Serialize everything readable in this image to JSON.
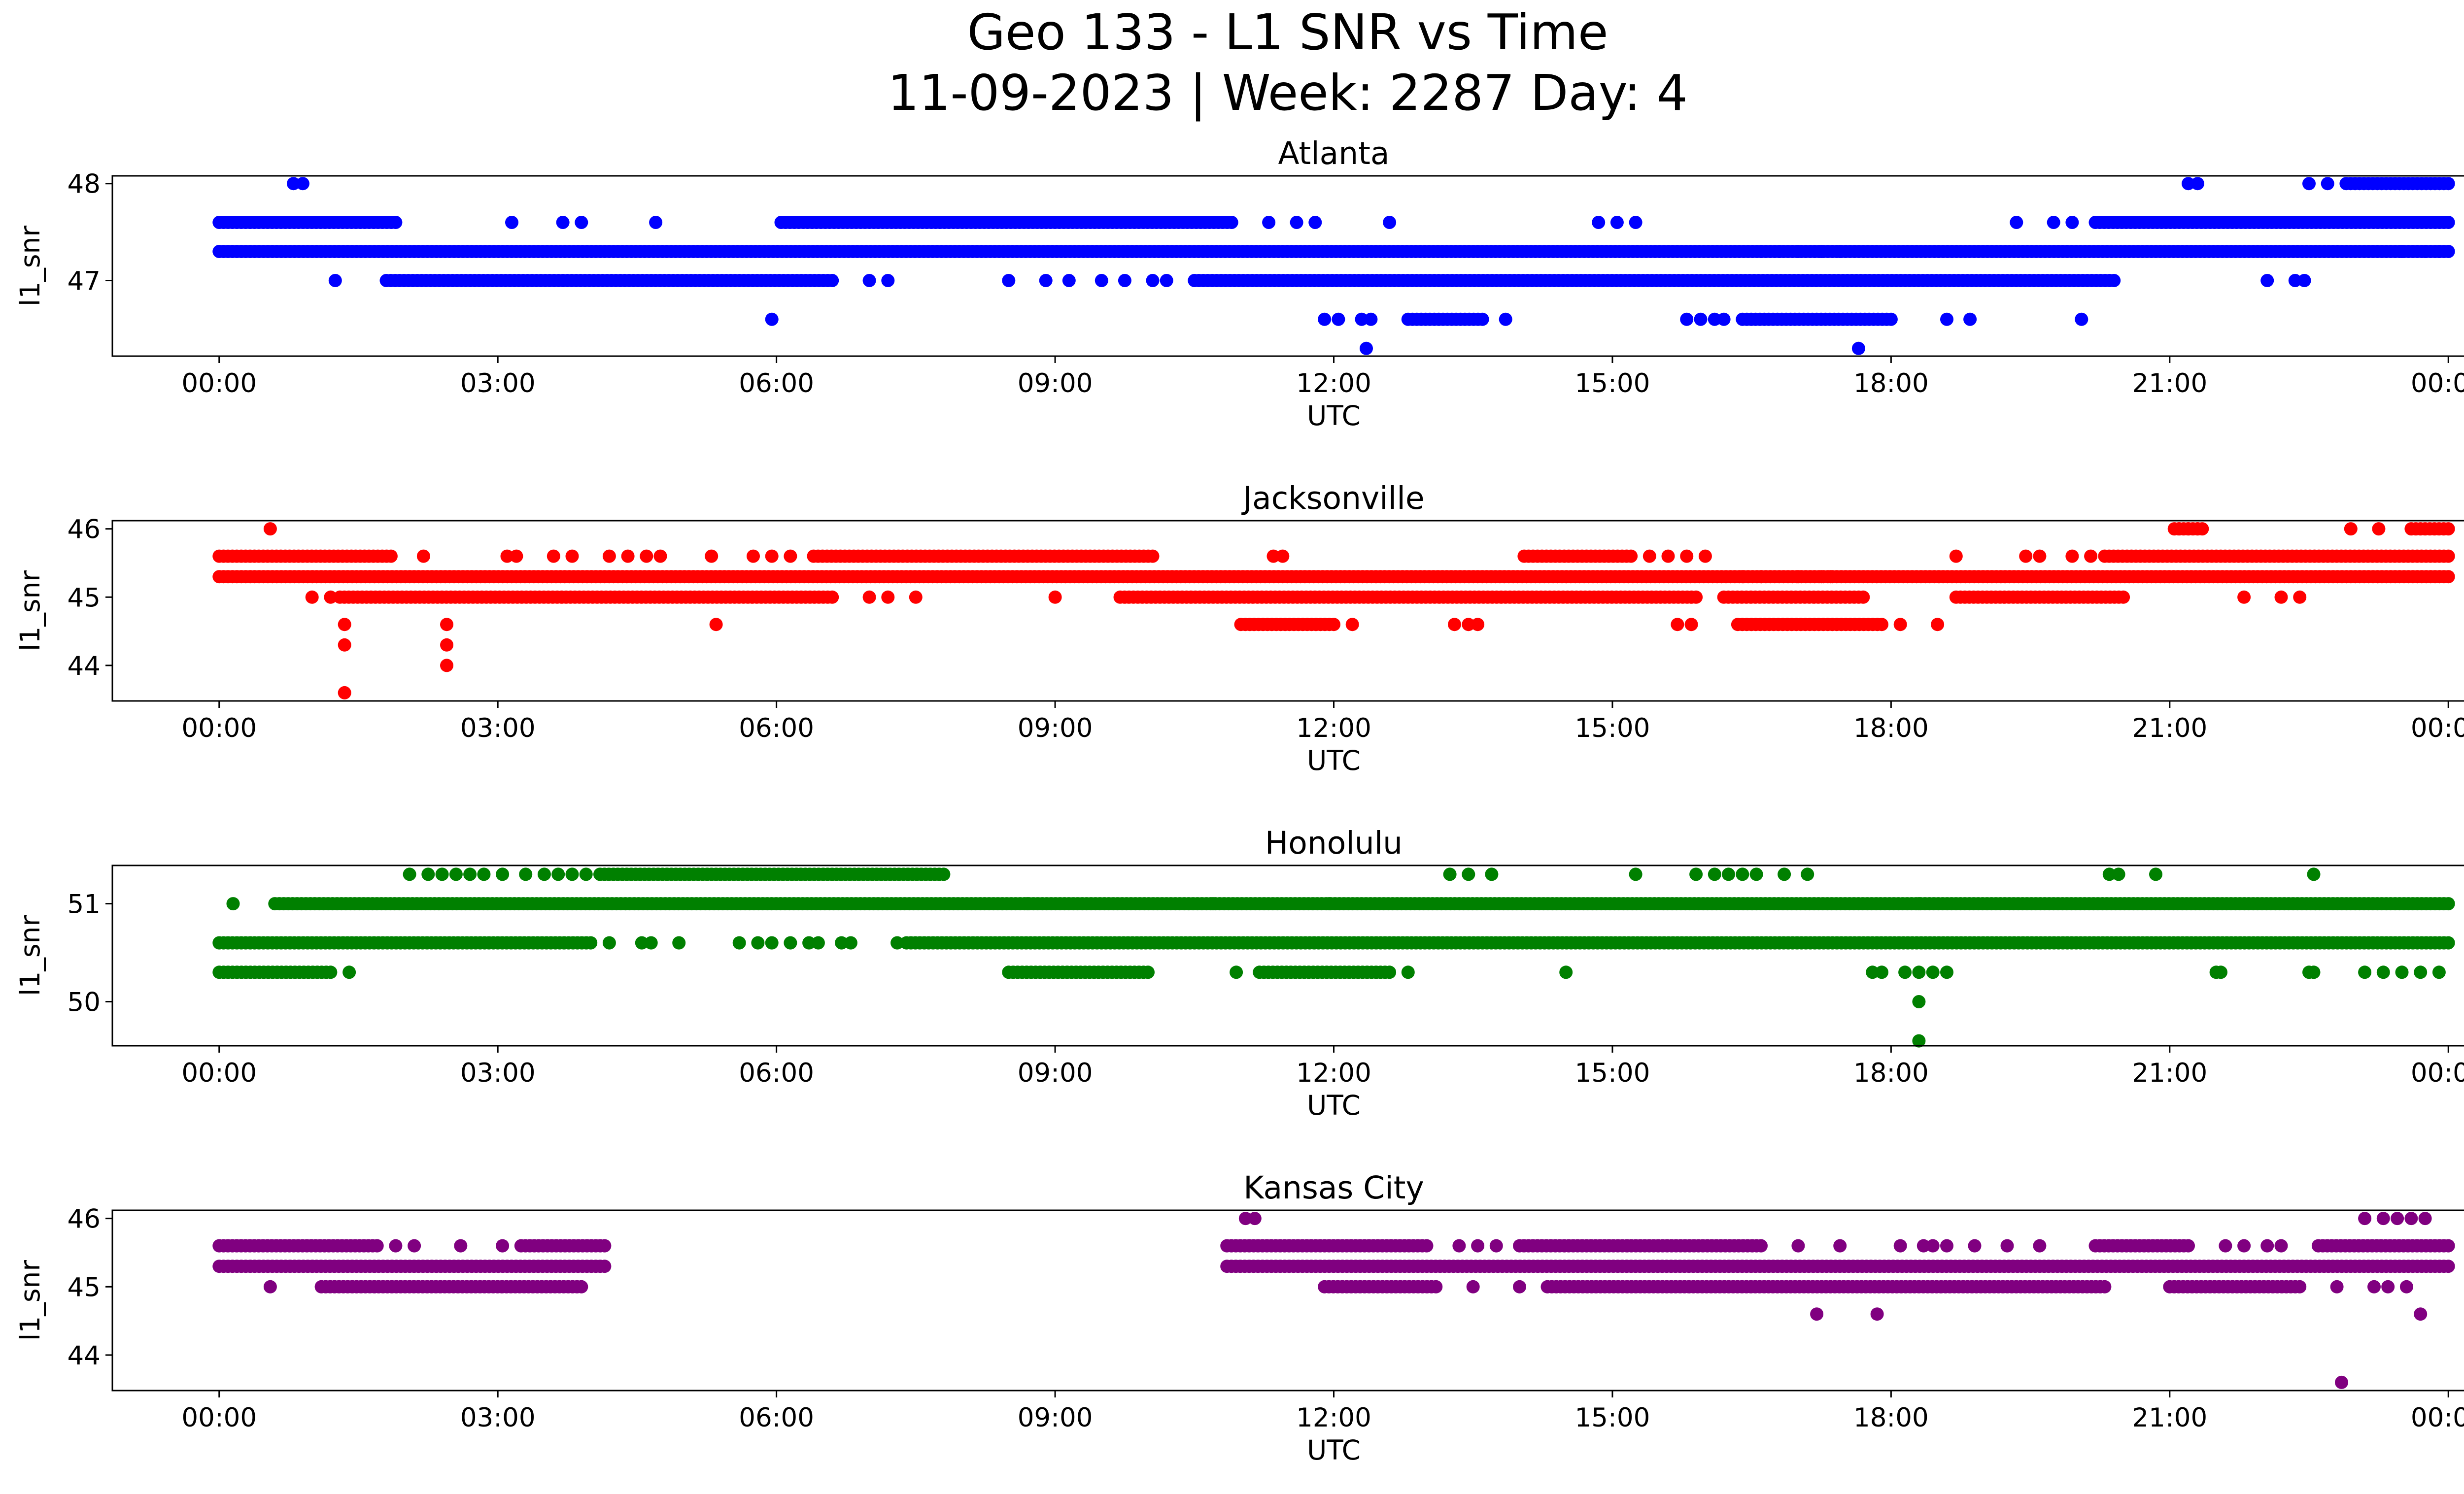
{
  "figure": {
    "title_line1": "Geo 133 - L1 SNR vs Time",
    "title_line2": "11-09-2023 | Week: 2287 Day: 4"
  },
  "chart_data": [
    {
      "type": "scatter",
      "title": "Atlanta",
      "xlabel": "UTC",
      "ylabel": "l1_snr",
      "color": "#0000ff",
      "x_unit": "hours UTC",
      "xlim": [
        -1.15,
        25.15
      ],
      "ylim": [
        46.22,
        48.08
      ],
      "yticks": [
        47,
        48
      ],
      "xticks": [
        "00:00",
        "03:00",
        "06:00",
        "09:00",
        "12:00",
        "15:00",
        "18:00",
        "21:00",
        "00:00"
      ],
      "bands": [
        {
          "y": 47.3,
          "ranges": [
            [
              0,
              24
            ]
          ]
        },
        {
          "y": 47.6,
          "ranges": [
            [
              0,
              1.9
            ],
            [
              6.05,
              10.9
            ],
            [
              20.2,
              24
            ]
          ]
        },
        {
          "y": 47.0,
          "ranges": [
            [
              1.8,
              6.6
            ],
            [
              10.5,
              20.4
            ]
          ]
        },
        {
          "y": 48.0,
          "ranges": [
            [
              22.9,
              24
            ]
          ]
        },
        {
          "y": 46.6,
          "ranges": [
            [
              12.8,
              13.6
            ],
            [
              16.4,
              18.0
            ]
          ]
        }
      ],
      "points": [
        [
          0.8,
          48.0
        ],
        [
          0.9,
          48.0
        ],
        [
          21.2,
          48.0
        ],
        [
          21.3,
          48.0
        ],
        [
          22.5,
          48.0
        ],
        [
          22.7,
          48.0
        ],
        [
          3.15,
          47.6
        ],
        [
          3.7,
          47.6
        ],
        [
          3.9,
          47.6
        ],
        [
          4.7,
          47.6
        ],
        [
          11.3,
          47.6
        ],
        [
          11.6,
          47.6
        ],
        [
          11.8,
          47.6
        ],
        [
          12.6,
          47.6
        ],
        [
          14.85,
          47.6
        ],
        [
          15.05,
          47.6
        ],
        [
          15.25,
          47.6
        ],
        [
          19.35,
          47.6
        ],
        [
          19.75,
          47.6
        ],
        [
          19.95,
          47.6
        ],
        [
          1.25,
          47.0
        ],
        [
          7.0,
          47.0
        ],
        [
          7.2,
          47.0
        ],
        [
          8.5,
          47.0
        ],
        [
          8.9,
          47.0
        ],
        [
          9.15,
          47.0
        ],
        [
          9.5,
          47.0
        ],
        [
          9.75,
          47.0
        ],
        [
          10.05,
          47.0
        ],
        [
          10.2,
          47.0
        ],
        [
          22.05,
          47.0
        ],
        [
          22.35,
          47.0
        ],
        [
          22.45,
          47.0
        ],
        [
          5.95,
          46.6
        ],
        [
          11.9,
          46.6
        ],
        [
          12.05,
          46.6
        ],
        [
          12.3,
          46.6
        ],
        [
          12.4,
          46.6
        ],
        [
          13.85,
          46.6
        ],
        [
          15.8,
          46.6
        ],
        [
          15.95,
          46.6
        ],
        [
          16.1,
          46.6
        ],
        [
          16.2,
          46.6
        ],
        [
          18.6,
          46.6
        ],
        [
          18.85,
          46.6
        ],
        [
          20.05,
          46.6
        ],
        [
          16.6,
          47.3
        ],
        [
          16.8,
          47.3
        ],
        [
          17.0,
          47.3
        ],
        [
          17.25,
          47.3
        ],
        [
          17.45,
          47.3
        ],
        [
          23.5,
          47.3
        ],
        [
          23.75,
          47.3
        ],
        [
          23.9,
          47.3
        ],
        [
          12.35,
          46.3
        ],
        [
          17.65,
          46.3
        ]
      ]
    },
    {
      "type": "scatter",
      "title": "Jacksonville",
      "xlabel": "UTC",
      "ylabel": "l1_snr",
      "color": "#ff0000",
      "x_unit": "hours UTC",
      "xlim": [
        -1.15,
        25.15
      ],
      "ylim": [
        43.48,
        46.12
      ],
      "yticks": [
        44,
        45,
        46
      ],
      "xticks": [
        "00:00",
        "03:00",
        "06:00",
        "09:00",
        "12:00",
        "15:00",
        "18:00",
        "21:00",
        "00:00"
      ],
      "bands": [
        {
          "y": 45.3,
          "ranges": [
            [
              0,
              24
            ]
          ]
        },
        {
          "y": 45.6,
          "ranges": [
            [
              0,
              1.85
            ],
            [
              6.4,
              10.05
            ],
            [
              14.05,
              15.2
            ],
            [
              20.3,
              24
            ]
          ]
        },
        {
          "y": 45.0,
          "ranges": [
            [
              1.3,
              6.6
            ],
            [
              9.7,
              15.9
            ],
            [
              16.2,
              17.7
            ],
            [
              18.7,
              20.5
            ]
          ]
        },
        {
          "y": 44.6,
          "ranges": [
            [
              11.0,
              12.0
            ],
            [
              16.35,
              17.9
            ]
          ]
        },
        {
          "y": 46.0,
          "ranges": [
            [
              21.05,
              21.35
            ],
            [
              23.6,
              24
            ]
          ]
        }
      ],
      "points": [
        [
          0.55,
          46.0
        ],
        [
          21.1,
          46.0
        ],
        [
          21.2,
          46.0
        ],
        [
          21.3,
          46.0
        ],
        [
          22.95,
          46.0
        ],
        [
          23.25,
          46.0
        ],
        [
          2.2,
          45.6
        ],
        [
          3.1,
          45.6
        ],
        [
          3.2,
          45.6
        ],
        [
          3.6,
          45.6
        ],
        [
          3.8,
          45.6
        ],
        [
          4.2,
          45.6
        ],
        [
          4.4,
          45.6
        ],
        [
          4.6,
          45.6
        ],
        [
          4.75,
          45.6
        ],
        [
          5.3,
          45.6
        ],
        [
          5.75,
          45.6
        ],
        [
          5.95,
          45.6
        ],
        [
          6.15,
          45.6
        ],
        [
          11.35,
          45.6
        ],
        [
          11.45,
          45.6
        ],
        [
          15.4,
          45.6
        ],
        [
          15.6,
          45.6
        ],
        [
          15.8,
          45.6
        ],
        [
          16.0,
          45.6
        ],
        [
          18.7,
          45.6
        ],
        [
          19.45,
          45.6
        ],
        [
          19.6,
          45.6
        ],
        [
          19.95,
          45.6
        ],
        [
          20.15,
          45.6
        ],
        [
          1.0,
          45.0
        ],
        [
          1.2,
          45.0
        ],
        [
          7.0,
          45.0
        ],
        [
          7.2,
          45.0
        ],
        [
          7.5,
          45.0
        ],
        [
          9.0,
          45.0
        ],
        [
          21.8,
          45.0
        ],
        [
          22.2,
          45.0
        ],
        [
          22.4,
          45.0
        ],
        [
          1.35,
          44.6
        ],
        [
          1.35,
          44.3
        ],
        [
          1.35,
          43.6
        ],
        [
          2.45,
          44.6
        ],
        [
          2.45,
          44.3
        ],
        [
          2.45,
          44.0
        ],
        [
          5.35,
          44.6
        ],
        [
          12.2,
          44.6
        ],
        [
          13.3,
          44.6
        ],
        [
          13.45,
          44.6
        ],
        [
          13.55,
          44.6
        ],
        [
          15.7,
          44.6
        ],
        [
          15.85,
          44.6
        ],
        [
          18.1,
          44.6
        ],
        [
          18.5,
          44.6
        ],
        [
          16.4,
          45.3
        ],
        [
          16.6,
          45.3
        ],
        [
          17.0,
          45.3
        ],
        [
          17.25,
          45.3
        ],
        [
          17.35,
          45.3
        ]
      ]
    },
    {
      "type": "scatter",
      "title": "Honolulu",
      "xlabel": "UTC",
      "ylabel": "l1_snr",
      "color": "#008000",
      "x_unit": "hours UTC",
      "xlim": [
        -1.15,
        25.15
      ],
      "ylim": [
        49.55,
        51.39
      ],
      "yticks": [
        50,
        51
      ],
      "xticks": [
        "00:00",
        "03:00",
        "06:00",
        "09:00",
        "12:00",
        "15:00",
        "18:00",
        "21:00",
        "00:00"
      ],
      "bands": [
        {
          "y": 50.6,
          "ranges": [
            [
              0,
              4.0
            ],
            [
              7.4,
              24
            ]
          ]
        },
        {
          "y": 51.0,
          "ranges": [
            [
              0.6,
              24
            ]
          ]
        },
        {
          "y": 51.3,
          "ranges": [
            [
              4.1,
              7.8
            ]
          ]
        },
        {
          "y": 50.3,
          "ranges": [
            [
              0,
              1.2
            ],
            [
              8.5,
              10.0
            ],
            [
              11.2,
              12.6
            ]
          ]
        }
      ],
      "points": [
        [
          0.15,
          51.0
        ],
        [
          1.4,
          50.3
        ],
        [
          10.95,
          50.3
        ],
        [
          12.8,
          50.3
        ],
        [
          14.5,
          50.3
        ],
        [
          17.8,
          50.3
        ],
        [
          17.9,
          50.3
        ],
        [
          18.15,
          50.3
        ],
        [
          18.3,
          50.3
        ],
        [
          18.45,
          50.3
        ],
        [
          18.6,
          50.3
        ],
        [
          21.5,
          50.3
        ],
        [
          21.55,
          50.3
        ],
        [
          22.5,
          50.3
        ],
        [
          22.55,
          50.3
        ],
        [
          23.1,
          50.3
        ],
        [
          23.3,
          50.3
        ],
        [
          23.5,
          50.3
        ],
        [
          23.7,
          50.3
        ],
        [
          23.9,
          50.3
        ],
        [
          18.3,
          50.0
        ],
        [
          18.3,
          49.6
        ],
        [
          2.05,
          51.3
        ],
        [
          2.25,
          51.3
        ],
        [
          2.4,
          51.3
        ],
        [
          2.55,
          51.3
        ],
        [
          2.7,
          51.3
        ],
        [
          2.85,
          51.3
        ],
        [
          3.05,
          51.3
        ],
        [
          3.3,
          51.3
        ],
        [
          3.5,
          51.3
        ],
        [
          3.65,
          51.3
        ],
        [
          3.8,
          51.3
        ],
        [
          3.95,
          51.3
        ],
        [
          13.25,
          51.3
        ],
        [
          13.45,
          51.3
        ],
        [
          13.7,
          51.3
        ],
        [
          15.25,
          51.3
        ],
        [
          15.9,
          51.3
        ],
        [
          16.1,
          51.3
        ],
        [
          16.25,
          51.3
        ],
        [
          16.4,
          51.3
        ],
        [
          16.55,
          51.3
        ],
        [
          16.85,
          51.3
        ],
        [
          17.1,
          51.3
        ],
        [
          20.35,
          51.3
        ],
        [
          20.45,
          51.3
        ],
        [
          20.85,
          51.3
        ],
        [
          22.55,
          51.3
        ],
        [
          4.2,
          50.6
        ],
        [
          4.55,
          50.6
        ],
        [
          4.65,
          50.6
        ],
        [
          4.95,
          50.6
        ],
        [
          5.6,
          50.6
        ],
        [
          5.8,
          50.6
        ],
        [
          5.95,
          50.6
        ],
        [
          6.15,
          50.6
        ],
        [
          6.35,
          50.6
        ],
        [
          6.45,
          50.6
        ],
        [
          6.7,
          50.6
        ],
        [
          6.8,
          50.6
        ],
        [
          7.3,
          50.6
        ],
        [
          8.7,
          51.0
        ],
        [
          10.7,
          51.0
        ],
        [
          11.95,
          51.0
        ],
        [
          18.3,
          51.0
        ]
      ]
    },
    {
      "type": "scatter",
      "title": "Kansas City",
      "xlabel": "UTC",
      "ylabel": "l1_snr",
      "color": "#800080",
      "x_unit": "hours UTC",
      "xlim": [
        -1.15,
        25.15
      ],
      "ylim": [
        43.48,
        46.12
      ],
      "yticks": [
        44,
        45,
        46
      ],
      "xticks": [
        "00:00",
        "03:00",
        "06:00",
        "09:00",
        "12:00",
        "15:00",
        "18:00",
        "21:00",
        "00:00"
      ],
      "bands": [
        {
          "y": 45.3,
          "ranges": [
            [
              0,
              4.15
            ],
            [
              10.85,
              24
            ]
          ]
        },
        {
          "y": 45.6,
          "ranges": [
            [
              0,
              1.7
            ],
            [
              3.25,
              4.15
            ],
            [
              10.85,
              13.0
            ],
            [
              14.0,
              16.6
            ],
            [
              20.2,
              21.2
            ],
            [
              22.6,
              24
            ]
          ]
        },
        {
          "y": 45.0,
          "ranges": [
            [
              1.1,
              3.9
            ],
            [
              11.9,
              13.1
            ],
            [
              14.3,
              20.3
            ],
            [
              21.0,
              22.4
            ]
          ]
        }
      ],
      "points": [
        [
          0.55,
          45.0
        ],
        [
          11.05,
          46.0
        ],
        [
          11.15,
          46.0
        ],
        [
          23.1,
          46.0
        ],
        [
          23.3,
          46.0
        ],
        [
          23.45,
          46.0
        ],
        [
          23.6,
          46.0
        ],
        [
          23.75,
          46.0
        ],
        [
          1.9,
          45.6
        ],
        [
          2.1,
          45.6
        ],
        [
          2.6,
          45.6
        ],
        [
          3.05,
          45.6
        ],
        [
          13.35,
          45.6
        ],
        [
          13.55,
          45.6
        ],
        [
          13.75,
          45.6
        ],
        [
          17.0,
          45.6
        ],
        [
          17.45,
          45.6
        ],
        [
          18.1,
          45.6
        ],
        [
          18.35,
          45.6
        ],
        [
          18.45,
          45.6
        ],
        [
          18.6,
          45.6
        ],
        [
          18.9,
          45.6
        ],
        [
          19.25,
          45.6
        ],
        [
          19.6,
          45.6
        ],
        [
          21.6,
          45.6
        ],
        [
          21.8,
          45.6
        ],
        [
          22.05,
          45.6
        ],
        [
          22.2,
          45.6
        ],
        [
          13.5,
          45.0
        ],
        [
          14.0,
          45.0
        ],
        [
          22.8,
          45.0
        ],
        [
          23.2,
          45.0
        ],
        [
          23.35,
          45.0
        ],
        [
          23.55,
          45.0
        ],
        [
          17.2,
          44.6
        ],
        [
          17.85,
          44.6
        ],
        [
          23.7,
          44.6
        ],
        [
          22.85,
          43.6
        ]
      ]
    }
  ]
}
